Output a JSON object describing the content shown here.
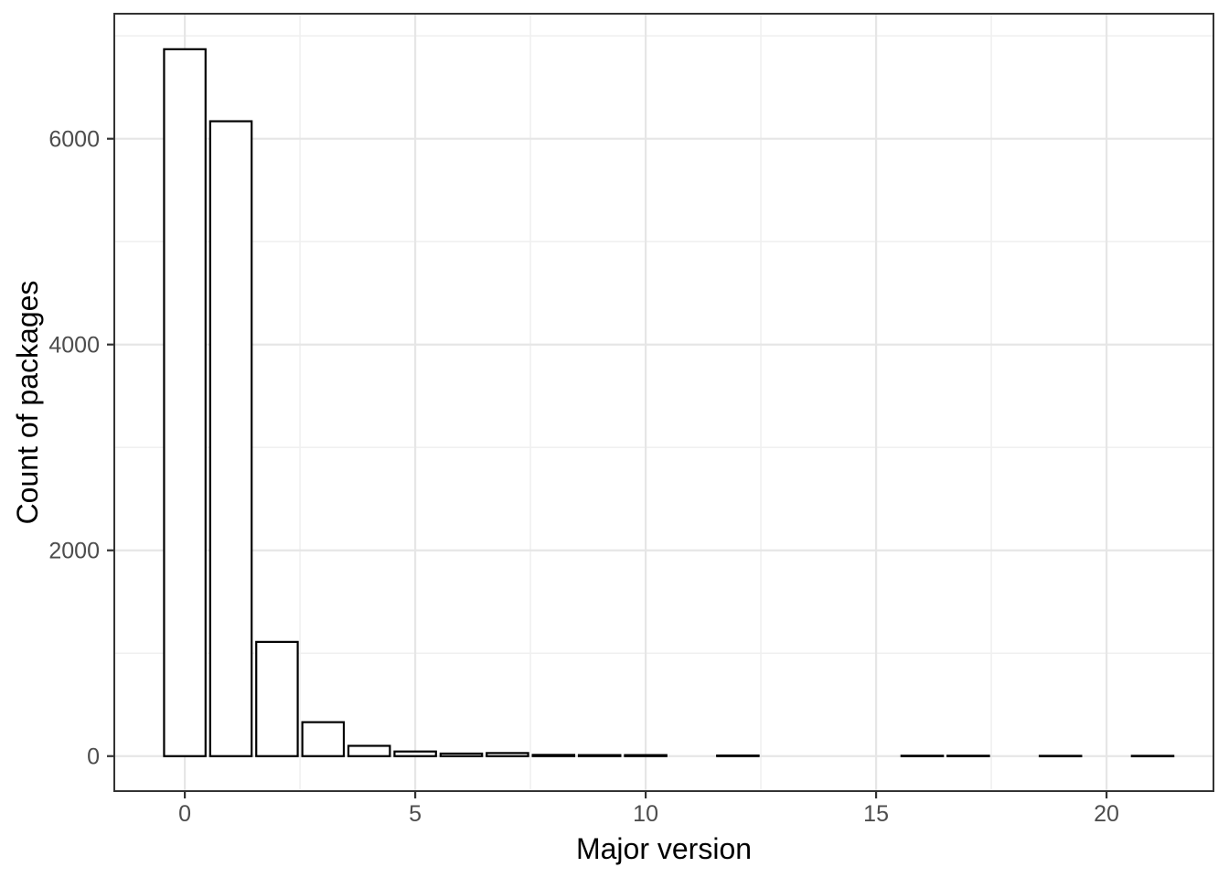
{
  "chart_data": {
    "type": "bar",
    "title": "",
    "xlabel": "Major version",
    "ylabel": "Count of packages",
    "x": [
      0,
      1,
      2,
      3,
      4,
      5,
      6,
      7,
      8,
      9,
      10,
      12,
      16,
      17,
      19,
      21
    ],
    "values": [
      6870,
      6170,
      1110,
      330,
      100,
      45,
      25,
      30,
      12,
      10,
      10,
      6,
      4,
      4,
      3,
      3
    ],
    "bar_width": 0.9,
    "xlim": [
      -1.53,
      22.32
    ],
    "ylim": [
      -340,
      7215
    ],
    "x_major_ticks": [
      0,
      5,
      10,
      15,
      20
    ],
    "x_tick_labels": [
      "0",
      "5",
      "10",
      "15",
      "20"
    ],
    "x_minor_gridlines": [
      2.5,
      7.5,
      12.5,
      17.5
    ],
    "y_major_ticks": [
      0,
      2000,
      4000,
      6000
    ],
    "y_tick_labels": [
      "0",
      "2000",
      "4000",
      "6000"
    ],
    "y_minor_gridlines": [
      1000,
      3000,
      5000,
      7000
    ],
    "grid": true,
    "legend": false,
    "colors": {
      "background": "#FFFFFF",
      "panel_background": "#FFFFFF",
      "panel_border": "#333333",
      "grid_major": "#E6E6E6",
      "grid_minor": "#F0F0F0",
      "bar_fill": "#FFFFFF",
      "bar_stroke": "#000000",
      "tick_mark": "#333333",
      "tick_label": "#4D4D4D",
      "axis_title": "#000000"
    }
  }
}
